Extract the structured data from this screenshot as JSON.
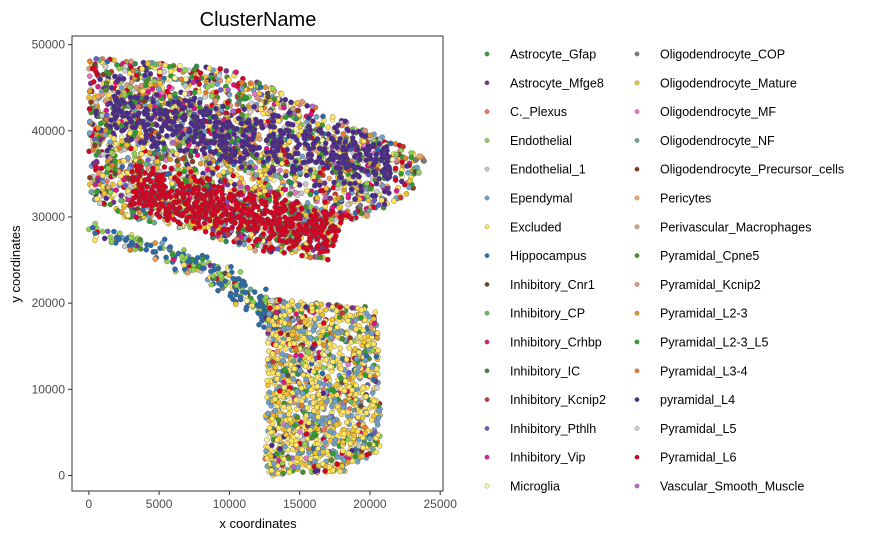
{
  "chart_data": {
    "type": "scatter",
    "title": "ClusterName",
    "xlabel": "x coordinates",
    "ylabel": "y coordinates",
    "xlim": [
      -1200,
      25200
    ],
    "ylim": [
      -1800,
      51000
    ],
    "xticks": [
      0,
      5000,
      10000,
      15000,
      20000,
      25000
    ],
    "yticks": [
      0,
      10000,
      20000,
      30000,
      40000,
      50000
    ],
    "grid": false,
    "legend_position": "right",
    "legend_columns": 2,
    "series": [
      {
        "name": "Astrocyte_Gfap",
        "color": "#2ca02c",
        "weight": 4
      },
      {
        "name": "Astrocyte_Mfge8",
        "color": "#7b2d8e",
        "weight": 2
      },
      {
        "name": "C._Plexus",
        "color": "#f0735e",
        "weight": 1
      },
      {
        "name": "Endothelial",
        "color": "#8fd14f",
        "weight": 4
      },
      {
        "name": "Endothelial_1",
        "color": "#c8c8c8",
        "weight": 2
      },
      {
        "name": "Ependymal",
        "color": "#6fa0c8",
        "weight": 3
      },
      {
        "name": "Excluded",
        "color": "#ffe45c",
        "weight": 9
      },
      {
        "name": "Hippocampus",
        "color": "#2a6aa8",
        "weight": 2
      },
      {
        "name": "Inhibitory_Cnr1",
        "color": "#5c4a3a",
        "weight": 1
      },
      {
        "name": "Inhibitory_CP",
        "color": "#66bb6a",
        "weight": 1
      },
      {
        "name": "Inhibitory_Crhbp",
        "color": "#e2127a",
        "weight": 2
      },
      {
        "name": "Inhibitory_IC",
        "color": "#2e8b57",
        "weight": 1
      },
      {
        "name": "Inhibitory_Kcnip2",
        "color": "#c0392b",
        "weight": 1
      },
      {
        "name": "Inhibitory_Pthlh",
        "color": "#6a5acd",
        "weight": 1
      },
      {
        "name": "Inhibitory_Vip",
        "color": "#d81b8c",
        "weight": 1
      },
      {
        "name": "Microglia",
        "color": "#fff8a0",
        "weight": 2
      },
      {
        "name": "Oligodendrocyte_COP",
        "color": "#7a7a7a",
        "weight": 1
      },
      {
        "name": "Oligodendrocyte_Mature",
        "color": "#f2c12e",
        "weight": 5
      },
      {
        "name": "Oligodendrocyte_MF",
        "color": "#e377c2",
        "weight": 1
      },
      {
        "name": "Oligodendrocyte_NF",
        "color": "#6aa89a",
        "weight": 1
      },
      {
        "name": "Oligodendrocyte_Precursor_cells",
        "color": "#8b3a1e",
        "weight": 1
      },
      {
        "name": "Pericytes",
        "color": "#f5a35b",
        "weight": 1
      },
      {
        "name": "Perivascular_Macrophages",
        "color": "#d9a07a",
        "weight": 1
      },
      {
        "name": "Pyramidal_Cpne5",
        "color": "#4d8c2a",
        "weight": 3
      },
      {
        "name": "Pyramidal_Kcnip2",
        "color": "#e8927c",
        "weight": 1
      },
      {
        "name": "Pyramidal_L2-3",
        "color": "#d99a2b",
        "weight": 3
      },
      {
        "name": "Pyramidal_L2-3_L5",
        "color": "#2f9e2f",
        "weight": 2
      },
      {
        "name": "Pyramidal_L3-4",
        "color": "#e87b2a",
        "weight": 2
      },
      {
        "name": "pyramidal_L4",
        "color": "#4b2a8c",
        "weight": 4
      },
      {
        "name": "Pyramidal_L5",
        "color": "#d0d0d0",
        "weight": 2
      },
      {
        "name": "Pyramidal_L6",
        "color": "#d7001f",
        "weight": 5
      },
      {
        "name": "Vascular_Smooth_Muscle",
        "color": "#b565c8",
        "weight": 1
      }
    ],
    "regions": [
      {
        "label": "upper_band",
        "polygon": [
          [
            0,
            48500
          ],
          [
            10000,
            47200
          ],
          [
            24000,
            37000
          ],
          [
            23000,
            33000
          ],
          [
            20000,
            30000
          ],
          [
            18000,
            29500
          ],
          [
            17000,
            25000
          ],
          [
            12000,
            26000
          ],
          [
            6000,
            29000
          ],
          [
            2000,
            30000
          ],
          [
            0,
            32000
          ]
        ]
      },
      {
        "label": "red_layer",
        "center": [
          8000,
          31500
        ],
        "spread": [
          8000,
          1500
        ]
      },
      {
        "label": "purple_layer",
        "center": [
          9000,
          40000
        ],
        "spread": [
          7000,
          1800
        ]
      },
      {
        "label": "hippocampus_arc",
        "points": [
          [
            0,
            28500
          ],
          [
            3500,
            27000
          ],
          [
            7000,
            25000
          ],
          [
            9500,
            23000
          ],
          [
            11000,
            21000
          ],
          [
            12500,
            19500
          ],
          [
            13500,
            17500
          ]
        ]
      },
      {
        "label": "lower_lobe",
        "polygon": [
          [
            12800,
            20500
          ],
          [
            20500,
            19500
          ],
          [
            20800,
            3000
          ],
          [
            18500,
            500
          ],
          [
            12500,
            0
          ],
          [
            12700,
            13000
          ]
        ]
      }
    ]
  }
}
